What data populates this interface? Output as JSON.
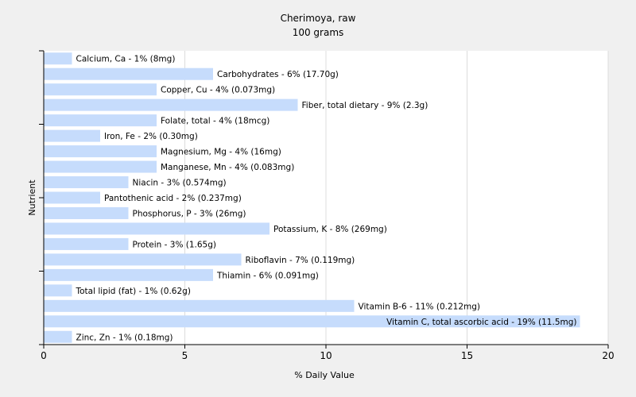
{
  "chart_data": {
    "type": "bar",
    "orientation": "horizontal",
    "title": "Cherimoya, raw",
    "subtitle": "100 grams",
    "xlabel": "% Daily Value",
    "ylabel": "Nutrient",
    "xlim": [
      0,
      20
    ],
    "xticks": [
      "0",
      "5",
      "10",
      "15",
      "20"
    ],
    "grid": "vertical",
    "bar_color": "#c6dcfc",
    "categories": [
      "Calcium, Ca",
      "Carbohydrates",
      "Copper, Cu",
      "Fiber, total dietary",
      "Folate, total",
      "Iron, Fe",
      "Magnesium, Mg",
      "Manganese, Mn",
      "Niacin",
      "Pantothenic acid",
      "Phosphorus, P",
      "Potassium, K",
      "Protein",
      "Riboflavin",
      "Thiamin",
      "Total lipid (fat)",
      "Vitamin B-6",
      "Vitamin C, total ascorbic acid",
      "Zinc, Zn"
    ],
    "values": [
      1,
      6,
      4,
      9,
      4,
      2,
      4,
      4,
      3,
      2,
      3,
      8,
      3,
      7,
      6,
      1,
      11,
      19,
      1
    ],
    "labels": [
      "Calcium, Ca - 1% (8mg)",
      "Carbohydrates - 6% (17.70g)",
      "Copper, Cu - 4% (0.073mg)",
      "Fiber, total dietary - 9% (2.3g)",
      "Folate, total - 4% (18mcg)",
      "Iron, Fe - 2% (0.30mg)",
      "Magnesium, Mg - 4% (16mg)",
      "Manganese, Mn - 4% (0.083mg)",
      "Niacin - 3% (0.574mg)",
      "Pantothenic acid - 2% (0.237mg)",
      "Phosphorus, P - 3% (26mg)",
      "Potassium, K - 8% (269mg)",
      "Protein - 3% (1.65g)",
      "Riboflavin - 7% (0.119mg)",
      "Thiamin - 6% (0.091mg)",
      "Total lipid (fat) - 1% (0.62g)",
      "Vitamin B-6 - 11% (0.212mg)",
      "Vitamin C, total ascorbic acid - 19% (11.5mg)",
      "Zinc, Zn - 1% (0.18mg)"
    ]
  }
}
